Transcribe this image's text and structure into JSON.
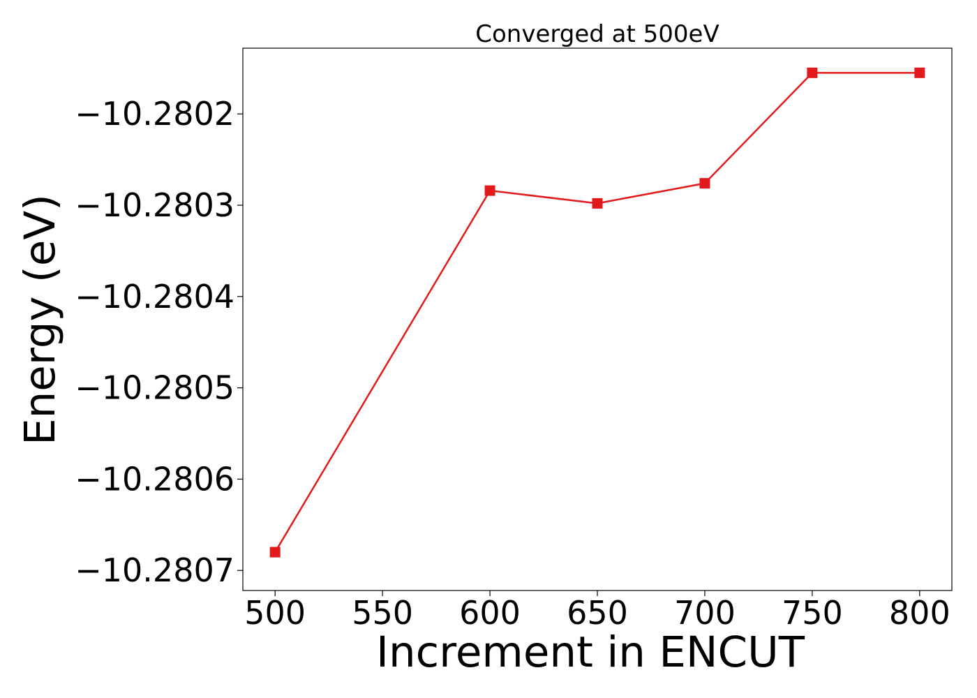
{
  "chart_data": {
    "type": "line",
    "title": "Converged at 500eV",
    "xlabel": "Increment in ENCUT",
    "ylabel": "Energy (eV)",
    "xlim": [
      485,
      815
    ],
    "ylim": [
      -10.280722,
      -10.280128
    ],
    "x_ticks": [
      500,
      550,
      600,
      650,
      700,
      750,
      800
    ],
    "y_ticks": [
      -10.2807,
      -10.2806,
      -10.2805,
      -10.2804,
      -10.2803,
      -10.2802
    ],
    "y_tick_labels": [
      "−10.2807",
      "−10.2806",
      "−10.2805",
      "−10.2804",
      "−10.2803",
      "−10.2802"
    ],
    "grid": false,
    "series": [
      {
        "color": "#e31a1c",
        "marker": "square",
        "x": [
          500,
          600,
          650,
          700,
          750,
          800
        ],
        "y": [
          -10.28068,
          -10.280284,
          -10.280298,
          -10.280276,
          -10.280155,
          -10.280155
        ]
      }
    ]
  }
}
